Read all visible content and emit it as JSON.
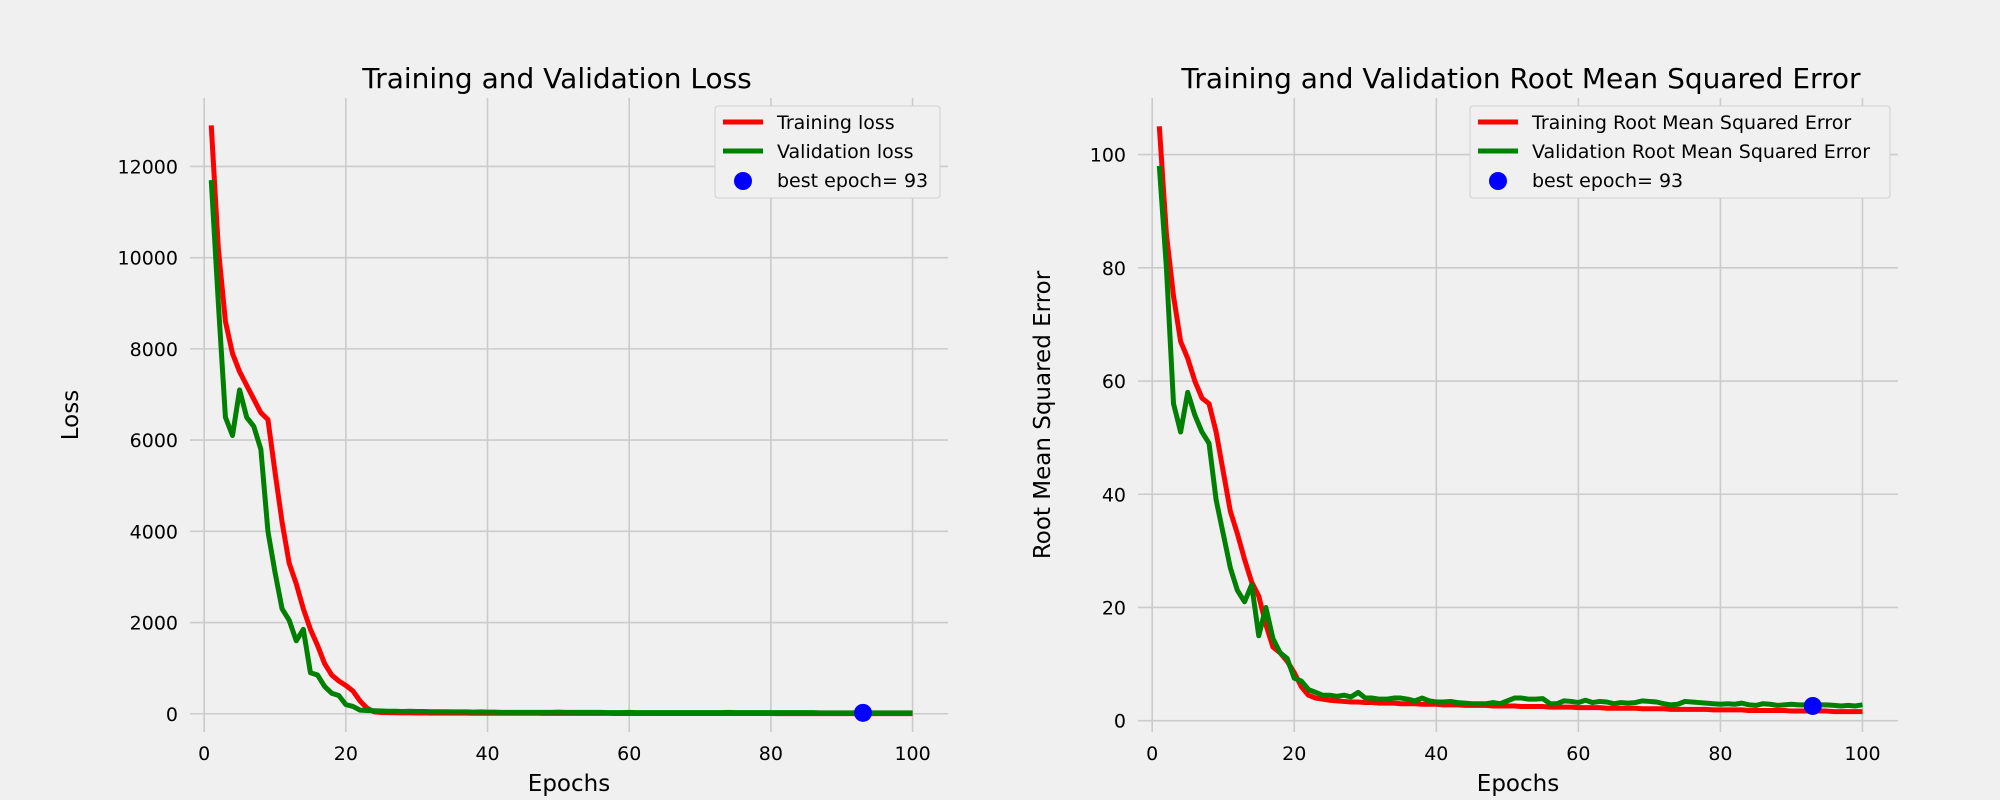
{
  "figure": {
    "background": "#f0f0f0",
    "grid_color": "#cbcbcb"
  },
  "chart_data": [
    {
      "type": "line",
      "title": "Training and Validation Loss",
      "xlabel": "Epochs",
      "ylabel": "Loss",
      "xlim": [
        -2,
        105
      ],
      "ylim": [
        -400,
        13500
      ],
      "xticks": [
        0,
        20,
        40,
        60,
        80,
        100
      ],
      "yticks": [
        0,
        2000,
        4000,
        6000,
        8000,
        10000,
        12000
      ],
      "grid": true,
      "legend_position": "top-right",
      "x": [
        1,
        2,
        3,
        4,
        5,
        6,
        7,
        8,
        9,
        10,
        11,
        12,
        13,
        14,
        15,
        16,
        17,
        18,
        19,
        20,
        21,
        22,
        23,
        24,
        25,
        26,
        27,
        28,
        29,
        30,
        31,
        32,
        33,
        34,
        35,
        36,
        37,
        38,
        39,
        40,
        41,
        42,
        43,
        44,
        45,
        46,
        47,
        48,
        49,
        50,
        51,
        52,
        53,
        54,
        55,
        56,
        57,
        58,
        59,
        60,
        61,
        62,
        63,
        64,
        65,
        66,
        67,
        68,
        69,
        70,
        71,
        72,
        73,
        74,
        75,
        76,
        77,
        78,
        79,
        80,
        81,
        82,
        83,
        84,
        85,
        86,
        87,
        88,
        89,
        90,
        91,
        92,
        93,
        94,
        95,
        96,
        97,
        98,
        99,
        100
      ],
      "series": [
        {
          "name": "Training loss",
          "color": "#ff0000",
          "values": [
            12900,
            10200,
            8600,
            7900,
            7500,
            7200,
            6900,
            6600,
            6450,
            5300,
            4200,
            3300,
            2850,
            2300,
            1850,
            1500,
            1100,
            850,
            720,
            620,
            500,
            280,
            120,
            40,
            28,
            24,
            21,
            19,
            18,
            17,
            16,
            15,
            15,
            14,
            14,
            13,
            13,
            12,
            12,
            12,
            11,
            11,
            11,
            10,
            10,
            10,
            10,
            9,
            9,
            9,
            9,
            9,
            8,
            8,
            8,
            8,
            8,
            7,
            7,
            7,
            7,
            7,
            7,
            6,
            6,
            6,
            6,
            6,
            6,
            6,
            5,
            5,
            5,
            5,
            5,
            5,
            5,
            5,
            5,
            5,
            4,
            4,
            4,
            4,
            4,
            4,
            4,
            4,
            4,
            4,
            4,
            4,
            4,
            3,
            3,
            3,
            3,
            3,
            3,
            3
          ]
        },
        {
          "name": "Validation loss",
          "color": "#008000",
          "values": [
            11700,
            9000,
            6500,
            6100,
            7100,
            6500,
            6300,
            5800,
            4000,
            3100,
            2300,
            2050,
            1600,
            1850,
            900,
            850,
            600,
            450,
            400,
            200,
            160,
            80,
            70,
            65,
            60,
            55,
            55,
            50,
            55,
            50,
            50,
            45,
            45,
            45,
            40,
            40,
            40,
            35,
            40,
            35,
            35,
            30,
            30,
            30,
            30,
            30,
            30,
            30,
            30,
            35,
            30,
            30,
            30,
            30,
            30,
            30,
            25,
            25,
            25,
            30,
            25,
            25,
            25,
            25,
            25,
            25,
            25,
            25,
            25,
            25,
            25,
            25,
            25,
            30,
            25,
            25,
            25,
            25,
            25,
            25,
            25,
            25,
            25,
            25,
            25,
            25,
            20,
            20,
            20,
            20,
            20,
            20,
            20,
            20,
            20,
            20,
            20,
            20,
            20,
            20
          ]
        }
      ],
      "best_epoch": {
        "label": "best epoch= 93",
        "x": 93,
        "y": 20,
        "color": "#0000ff"
      }
    },
    {
      "type": "line",
      "title": "Training and Validation Root Mean Squared Error",
      "xlabel": "Epochs",
      "ylabel": "Root Mean Squared Error",
      "xlim": [
        -2,
        105
      ],
      "ylim": [
        -2,
        110
      ],
      "xticks": [
        0,
        20,
        40,
        60,
        80,
        100
      ],
      "yticks": [
        0,
        20,
        40,
        60,
        80,
        100
      ],
      "grid": true,
      "legend_position": "top-right",
      "x": [
        1,
        2,
        3,
        4,
        5,
        6,
        7,
        8,
        9,
        10,
        11,
        12,
        13,
        14,
        15,
        16,
        17,
        18,
        19,
        20,
        21,
        22,
        23,
        24,
        25,
        26,
        27,
        28,
        29,
        30,
        31,
        32,
        33,
        34,
        35,
        36,
        37,
        38,
        39,
        40,
        41,
        42,
        43,
        44,
        45,
        46,
        47,
        48,
        49,
        50,
        51,
        52,
        53,
        54,
        55,
        56,
        57,
        58,
        59,
        60,
        61,
        62,
        63,
        64,
        65,
        66,
        67,
        68,
        69,
        70,
        71,
        72,
        73,
        74,
        75,
        76,
        77,
        78,
        79,
        80,
        81,
        82,
        83,
        84,
        85,
        86,
        87,
        88,
        89,
        90,
        91,
        92,
        93,
        94,
        95,
        96,
        97,
        98,
        99,
        100
      ],
      "series": [
        {
          "name": "Training Root Mean Squared Error",
          "color": "#ff0000",
          "values": [
            105,
            86,
            75,
            67,
            64,
            60,
            57,
            56,
            51,
            44,
            37,
            33,
            28.5,
            24.5,
            22,
            17,
            13,
            12,
            10.5,
            8.5,
            6,
            4.5,
            4,
            3.8,
            3.6,
            3.5,
            3.4,
            3.3,
            3.3,
            3.2,
            3.2,
            3.1,
            3.1,
            3.1,
            3.0,
            3.0,
            3.0,
            2.9,
            2.9,
            2.9,
            2.8,
            2.8,
            2.8,
            2.7,
            2.7,
            2.7,
            2.7,
            2.6,
            2.6,
            2.6,
            2.6,
            2.5,
            2.5,
            2.5,
            2.5,
            2.4,
            2.4,
            2.4,
            2.4,
            2.3,
            2.3,
            2.3,
            2.3,
            2.2,
            2.2,
            2.2,
            2.2,
            2.2,
            2.1,
            2.1,
            2.1,
            2.1,
            2.0,
            2.0,
            2.0,
            2.0,
            2.0,
            2.0,
            1.9,
            1.9,
            1.9,
            1.9,
            1.9,
            1.8,
            1.8,
            1.8,
            1.8,
            1.8,
            1.8,
            1.7,
            1.7,
            1.7,
            1.7,
            1.7,
            1.7,
            1.6,
            1.6,
            1.6,
            1.6,
            1.6
          ]
        },
        {
          "name": "Validation Root Mean Squared Error",
          "color": "#008000",
          "values": [
            98,
            80,
            56,
            51,
            58,
            54,
            51,
            49,
            39,
            33,
            27,
            23,
            21,
            24,
            15,
            20,
            14.5,
            12,
            11,
            7.5,
            7,
            5.5,
            5,
            4.5,
            4.5,
            4.3,
            4.5,
            4.2,
            5,
            4,
            4,
            3.8,
            3.8,
            4,
            4,
            3.8,
            3.5,
            4,
            3.5,
            3.3,
            3.3,
            3.4,
            3.2,
            3.1,
            3.0,
            3.0,
            3.0,
            3.2,
            3.0,
            3.5,
            4,
            4,
            3.8,
            3.8,
            3.9,
            3,
            3,
            3.5,
            3.4,
            3.2,
            3.6,
            3.2,
            3.4,
            3.3,
            3.0,
            3.2,
            3.1,
            3.2,
            3.5,
            3.4,
            3.3,
            3.0,
            2.8,
            2.9,
            3.4,
            3.3,
            3.2,
            3.1,
            3.0,
            2.9,
            3.0,
            2.9,
            3.1,
            2.8,
            2.7,
            3.0,
            2.9,
            2.7,
            2.8,
            2.9,
            2.8,
            2.8,
            2.6,
            2.8,
            2.8,
            2.7,
            2.6,
            2.7,
            2.6,
            2.8
          ]
        }
      ],
      "best_epoch": {
        "label": "best epoch= 93",
        "x": 93,
        "y": 2.6,
        "color": "#0000ff"
      }
    }
  ]
}
